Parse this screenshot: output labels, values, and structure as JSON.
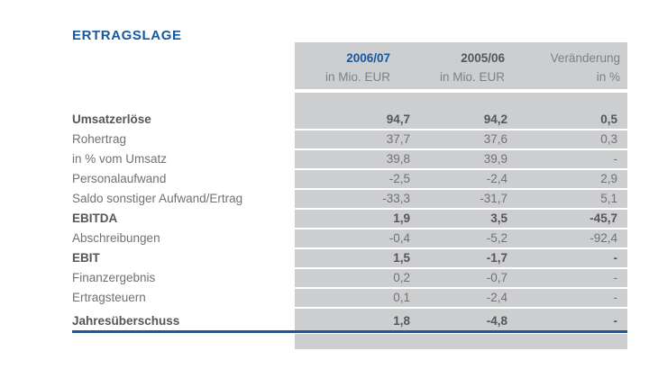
{
  "title": "ERTRAGSLAGE",
  "colors": {
    "accent_blue": "#1758A0",
    "band_gray": "#CDCECF",
    "text_gray": "#707175",
    "text_dark": "#55565A",
    "text_light": "#7F8084"
  },
  "table": {
    "columns": [
      {
        "year": "2006/07",
        "unit": "in Mio. EUR"
      },
      {
        "year": "2005/06",
        "unit": "in Mio. EUR"
      },
      {
        "year": "Veränderung",
        "unit": "in %"
      }
    ],
    "rows": [
      {
        "label": "Umsatzerlöse",
        "values": [
          "94,7",
          "94,2",
          "0,5"
        ]
      },
      {
        "label": "Rohertrag",
        "values": [
          "37,7",
          "37,6",
          "0,3"
        ]
      },
      {
        "label": "in % vom Umsatz",
        "values": [
          "39,8",
          "39,9",
          "-"
        ]
      },
      {
        "label": "Personalaufwand",
        "values": [
          "-2,5",
          "-2,4",
          "2,9"
        ]
      },
      {
        "label": "Saldo sonstiger Aufwand/Ertrag",
        "values": [
          "-33,3",
          "-31,7",
          "5,1"
        ]
      },
      {
        "label": "EBITDA",
        "values": [
          "1,9",
          "3,5",
          "-45,7"
        ]
      },
      {
        "label": "Abschreibungen",
        "values": [
          "-0,4",
          "-5,2",
          "-92,4"
        ]
      },
      {
        "label": "EBIT",
        "values": [
          "1,5",
          "-1,7",
          "-"
        ]
      },
      {
        "label": "Finanzergebnis",
        "values": [
          "0,2",
          "-0,7",
          "-"
        ]
      },
      {
        "label": "Ertragsteuern",
        "values": [
          "0,1",
          "-2,4",
          "-"
        ]
      },
      {
        "label": "Jahresüberschuss",
        "values": [
          "1,8",
          "-4,8",
          "-"
        ]
      }
    ]
  }
}
